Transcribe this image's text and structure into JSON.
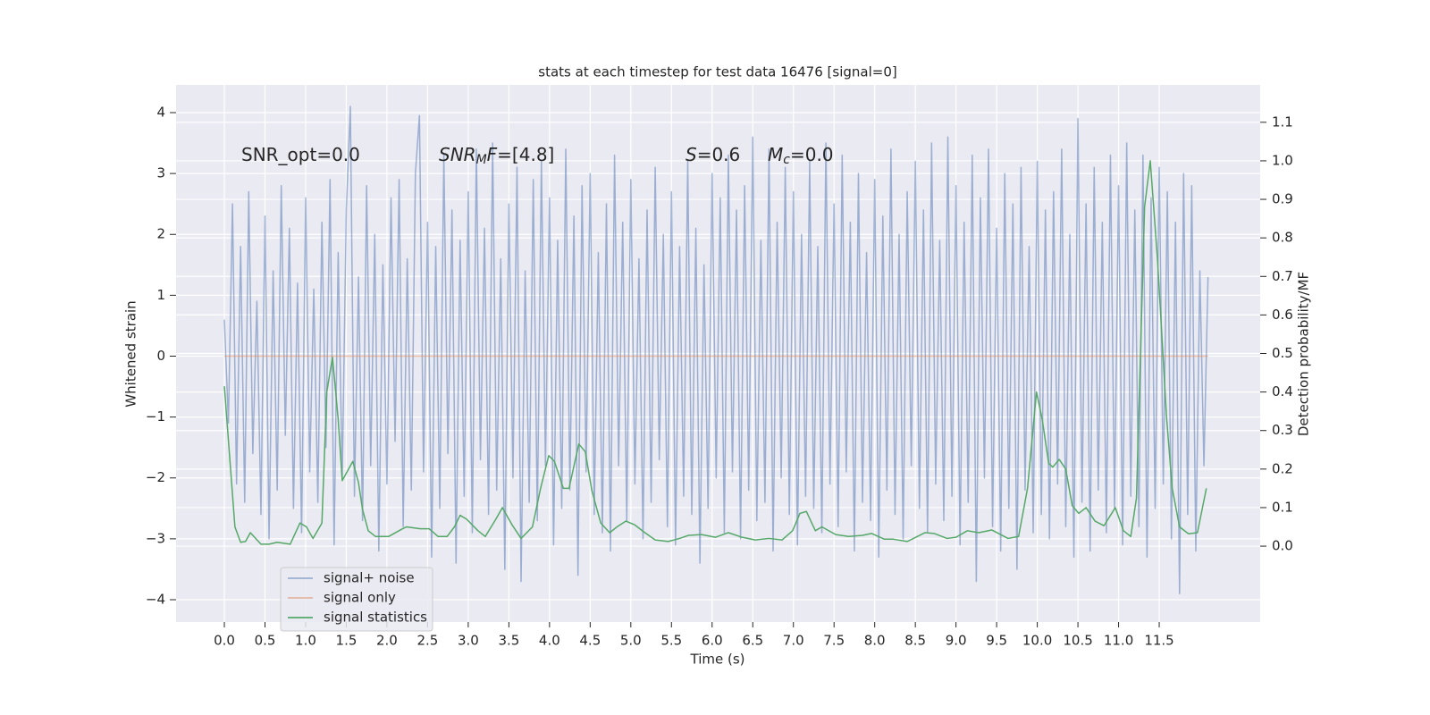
{
  "chart_data": {
    "type": "line",
    "title": "stats at each timestep for test data 16476 [signal=0]",
    "xlabel": "Time (s)",
    "ylabel": "Whitened strain",
    "y2label": "Detection probability/MF",
    "annotations": [
      {
        "parts": [
          "SNR_opt=0.0"
        ]
      },
      {
        "parts": [
          "SNR",
          "M",
          "F",
          "=[4.8]"
        ]
      },
      {
        "parts": [
          "S",
          "=0.6"
        ]
      },
      {
        "parts": [
          "M",
          "c",
          "=0.0"
        ]
      }
    ],
    "xlim": [
      -0.594,
      12.742
    ],
    "xticks": [
      {
        "value": 0,
        "label": "0.0"
      },
      0.5,
      {
        "value": 1,
        "label": "1.0"
      },
      1.5,
      {
        "value": 2,
        "label": "2.0"
      },
      2.5,
      {
        "value": 3,
        "label": "3.0"
      },
      3.5,
      {
        "value": 4,
        "label": "4.0"
      },
      4.5,
      {
        "value": 5,
        "label": "5.0"
      },
      5.5,
      {
        "value": 6,
        "label": "6.0"
      },
      6.5,
      {
        "value": 7,
        "label": "7.0"
      },
      7.5,
      {
        "value": 8,
        "label": "8.0"
      },
      8.5,
      {
        "value": 9,
        "label": "9.0"
      },
      9.5,
      {
        "value": 10,
        "label": "10.0"
      },
      10.5,
      {
        "value": 11,
        "label": "11.0"
      },
      11.5
    ],
    "ylim": [
      -4.367,
      4.455
    ],
    "yticks": [
      {
        "value": -4,
        "label": "−4"
      },
      {
        "value": -3,
        "label": "−3"
      },
      {
        "value": -2,
        "label": "−2"
      },
      {
        "value": -1,
        "label": "−1"
      },
      0,
      1,
      2,
      3,
      4
    ],
    "y2lim": [
      -0.197,
      1.197
    ],
    "y2ticks": [
      {
        "value": 0,
        "label": "0.0"
      },
      0.1,
      0.2,
      0.3,
      0.4,
      0.5,
      0.6,
      0.7,
      0.8,
      0.9,
      {
        "value": 1,
        "label": "1.0"
      },
      1.1
    ],
    "grid": true,
    "legend": "lower left",
    "series": [
      {
        "name": "signal+ noise",
        "color": "#4c72b0",
        "alpha": 0.5,
        "x": [
          0,
          0.05,
          0.1,
          0.15,
          0.2,
          0.25,
          0.3,
          0.35,
          0.4,
          0.45,
          0.5,
          0.55,
          0.6,
          0.65,
          0.7,
          0.75,
          0.8,
          0.85,
          0.9,
          0.95,
          1,
          1.05,
          1.1,
          1.15,
          1.2,
          1.25,
          1.3,
          1.35,
          1.4,
          1.45,
          1.5,
          1.55,
          1.6,
          1.65,
          1.7,
          1.75,
          1.8,
          1.85,
          1.9,
          1.95,
          2,
          2.05,
          2.1,
          2.15,
          2.2,
          2.25,
          2.3,
          2.35,
          2.4,
          2.45,
          2.5,
          2.55,
          2.6,
          2.65,
          2.7,
          2.75,
          2.8,
          2.85,
          2.9,
          2.95,
          3,
          3.05,
          3.1,
          3.15,
          3.2,
          3.25,
          3.3,
          3.35,
          3.4,
          3.45,
          3.5,
          3.55,
          3.6,
          3.65,
          3.7,
          3.75,
          3.8,
          3.85,
          3.9,
          3.95,
          4,
          4.05,
          4.1,
          4.15,
          4.2,
          4.25,
          4.3,
          4.35,
          4.4,
          4.45,
          4.5,
          4.55,
          4.6,
          4.65,
          4.7,
          4.75,
          4.8,
          4.85,
          4.9,
          4.95,
          5,
          5.05,
          5.1,
          5.15,
          5.2,
          5.25,
          5.3,
          5.35,
          5.4,
          5.45,
          5.5,
          5.55,
          5.6,
          5.65,
          5.7,
          5.75,
          5.8,
          5.85,
          5.9,
          5.95,
          6,
          6.05,
          6.1,
          6.15,
          6.2,
          6.25,
          6.3,
          6.35,
          6.4,
          6.45,
          6.5,
          6.55,
          6.6,
          6.65,
          6.7,
          6.75,
          6.8,
          6.85,
          6.9,
          6.95,
          7,
          7.05,
          7.1,
          7.15,
          7.2,
          7.25,
          7.3,
          7.35,
          7.4,
          7.45,
          7.5,
          7.55,
          7.6,
          7.65,
          7.7,
          7.75,
          7.8,
          7.85,
          7.9,
          7.95,
          8,
          8.05,
          8.1,
          8.15,
          8.2,
          8.25,
          8.3,
          8.35,
          8.4,
          8.45,
          8.5,
          8.55,
          8.6,
          8.65,
          8.7,
          8.75,
          8.8,
          8.85,
          8.9,
          8.95,
          9,
          9.05,
          9.1,
          9.15,
          9.2,
          9.25,
          9.3,
          9.35,
          9.4,
          9.45,
          9.5,
          9.55,
          9.6,
          9.65,
          9.7,
          9.75,
          9.8,
          9.85,
          9.9,
          9.95,
          10,
          10.05,
          10.1,
          10.15,
          10.2,
          10.25,
          10.3,
          10.35,
          10.4,
          10.45,
          10.5,
          10.55,
          10.6,
          10.65,
          10.7,
          10.75,
          10.8,
          10.85,
          10.9,
          10.95,
          11,
          11.05,
          11.1,
          11.15,
          11.2,
          11.25,
          11.3,
          11.35,
          11.4,
          11.45,
          11.5,
          11.55,
          11.6,
          11.65,
          11.7,
          11.75,
          11.8,
          11.85,
          11.9,
          11.95,
          12,
          12.05,
          12.1
        ],
        "values": [
          0.6,
          -1.1,
          2.5,
          -2.1,
          1.8,
          -2.4,
          2.7,
          -1.6,
          0.9,
          -2.6,
          2.3,
          -3.0,
          1.4,
          -2.2,
          2.8,
          -1.3,
          2.1,
          -2.5,
          1.2,
          -2.9,
          2.6,
          -1.9,
          1.1,
          -2.4,
          2.2,
          -1.5,
          2.9,
          -3.1,
          1.7,
          -2.0,
          2.4,
          4.1,
          -2.3,
          1.3,
          -2.7,
          2.8,
          -1.8,
          2.0,
          -3.2,
          1.5,
          -2.1,
          2.6,
          -1.4,
          2.9,
          -2.8,
          1.6,
          -2.2,
          3.0,
          3.95,
          -1.9,
          2.2,
          -3.3,
          1.8,
          -2.5,
          3.3,
          -1.6,
          2.4,
          -3.4,
          1.9,
          -2.3,
          2.7,
          -2.9,
          3.4,
          -1.7,
          2.1,
          -2.6,
          3.5,
          -2.2,
          1.6,
          -3.5,
          2.5,
          -2.0,
          3.1,
          -3.7,
          1.4,
          -2.4,
          2.9,
          -2.7,
          3.2,
          -1.8,
          2.6,
          -3.1,
          1.9,
          -2.5,
          3.4,
          -2.2,
          2.3,
          -3.6,
          2.8,
          -1.9,
          3.0,
          -2.6,
          1.7,
          -2.9,
          2.5,
          -3.2,
          3.3,
          -1.8,
          2.2,
          -2.7,
          2.9,
          -2.1,
          1.6,
          -3.0,
          2.4,
          -2.4,
          3.1,
          -1.7,
          2.0,
          -2.8,
          2.7,
          -3.1,
          1.8,
          -2.3,
          3.2,
          -2.6,
          2.1,
          -3.4,
          1.5,
          -2.5,
          3.0,
          -2.0,
          2.6,
          -2.9,
          3.3,
          -1.9,
          2.4,
          -3.0,
          2.8,
          -2.2,
          3.6,
          -2.7,
          1.9,
          -2.4,
          3.4,
          -3.2,
          2.2,
          -2.0,
          3.1,
          -2.6,
          2.7,
          -3.1,
          2.0,
          -2.3,
          3.2,
          -2.5,
          1.8,
          -2.9,
          3.5,
          -2.1,
          2.5,
          -2.8,
          3.3,
          -1.9,
          2.2,
          -3.2,
          3.0,
          -2.4,
          1.7,
          -2.7,
          2.9,
          -3.3,
          2.3,
          -2.2,
          3.4,
          -2.6,
          2.0,
          -3.0,
          2.7,
          -1.8,
          3.2,
          -2.5,
          2.4,
          -2.9,
          3.5,
          -2.1,
          1.9,
          -2.7,
          3.6,
          -2.3,
          2.8,
          -3.1,
          2.2,
          -2.4,
          3.3,
          -3.7,
          2.6,
          -2.0,
          3.4,
          -2.8,
          2.1,
          -3.2,
          3.0,
          -2.5,
          2.5,
          -3.5,
          3.1,
          -2.2,
          1.8,
          -2.9,
          3.2,
          -2.6,
          2.4,
          -3.0,
          2.7,
          -2.1,
          3.4,
          -2.8,
          2.0,
          -3.3,
          3.9,
          -2.4,
          2.5,
          -3.2,
          3.1,
          -2.2,
          2.2,
          -2.9,
          3.3,
          -2.5,
          2.8,
          -3.1,
          3.5,
          -2.3,
          2.4,
          -2.8,
          3.3,
          -3.3,
          2.6,
          -2.5,
          3.1,
          -2.1,
          2.7,
          -3.0,
          2.2,
          -3.9,
          3.0,
          -2.6,
          2.8,
          -3.2,
          1.4,
          -1.8,
          1.3
        ]
      },
      {
        "name": "signal only",
        "color": "#dd8452",
        "alpha": 0.5,
        "x": [
          0,
          12.1
        ],
        "values": [
          0,
          0
        ]
      },
      {
        "name": "signal statistics",
        "color": "#55a868",
        "axis": "y2",
        "x": [
          0,
          0.13,
          0.2,
          0.26,
          0.32,
          0.45,
          0.55,
          0.65,
          0.81,
          0.93,
          1.01,
          1.09,
          1.2,
          1.26,
          1.33,
          1.4,
          1.45,
          1.58,
          1.65,
          1.7,
          1.77,
          1.86,
          2.02,
          2.19,
          2.24,
          2.41,
          2.52,
          2.63,
          2.74,
          2.83,
          2.9,
          2.98,
          3.12,
          3.21,
          3.34,
          3.42,
          3.54,
          3.65,
          3.79,
          3.89,
          3.99,
          4.06,
          4.17,
          4.24,
          4.36,
          4.44,
          4.52,
          4.63,
          4.74,
          4.83,
          4.94,
          5.05,
          5.16,
          5.3,
          5.46,
          5.6,
          5.71,
          5.87,
          6.04,
          6.2,
          6.37,
          6.53,
          6.7,
          6.86,
          6.99,
          7.08,
          7.16,
          7.27,
          7.35,
          7.52,
          7.68,
          7.85,
          7.96,
          8.12,
          8.23,
          8.4,
          8.62,
          8.73,
          8.89,
          9.0,
          9.14,
          9.28,
          9.44,
          9.64,
          9.77,
          9.88,
          9.99,
          10.06,
          10.14,
          10.19,
          10.27,
          10.35,
          10.43,
          10.51,
          10.6,
          10.71,
          10.82,
          10.96,
          11.06,
          11.15,
          11.22,
          11.32,
          11.39,
          11.48,
          11.59,
          11.66,
          11.75,
          11.86,
          11.97,
          12.08
        ],
        "values": [
          0.415,
          0.05,
          0.01,
          0.012,
          0.035,
          0.005,
          0.005,
          0.01,
          0.005,
          0.06,
          0.05,
          0.02,
          0.06,
          0.4,
          0.49,
          0.33,
          0.17,
          0.22,
          0.165,
          0.095,
          0.04,
          0.025,
          0.025,
          0.045,
          0.05,
          0.045,
          0.045,
          0.025,
          0.025,
          0.05,
          0.08,
          0.07,
          0.04,
          0.025,
          0.07,
          0.1,
          0.055,
          0.02,
          0.05,
          0.15,
          0.235,
          0.22,
          0.15,
          0.15,
          0.265,
          0.245,
          0.145,
          0.06,
          0.035,
          0.05,
          0.065,
          0.055,
          0.037,
          0.016,
          0.012,
          0.02,
          0.028,
          0.03,
          0.023,
          0.035,
          0.023,
          0.016,
          0.02,
          0.016,
          0.04,
          0.085,
          0.09,
          0.04,
          0.05,
          0.03,
          0.025,
          0.028,
          0.033,
          0.018,
          0.018,
          0.012,
          0.035,
          0.033,
          0.02,
          0.023,
          0.04,
          0.035,
          0.042,
          0.02,
          0.025,
          0.15,
          0.4,
          0.33,
          0.215,
          0.205,
          0.225,
          0.2,
          0.105,
          0.085,
          0.1,
          0.065,
          0.053,
          0.1,
          0.04,
          0.025,
          0.125,
          0.88,
          1.0,
          0.74,
          0.335,
          0.15,
          0.05,
          0.032,
          0.035,
          0.15
        ]
      }
    ]
  }
}
